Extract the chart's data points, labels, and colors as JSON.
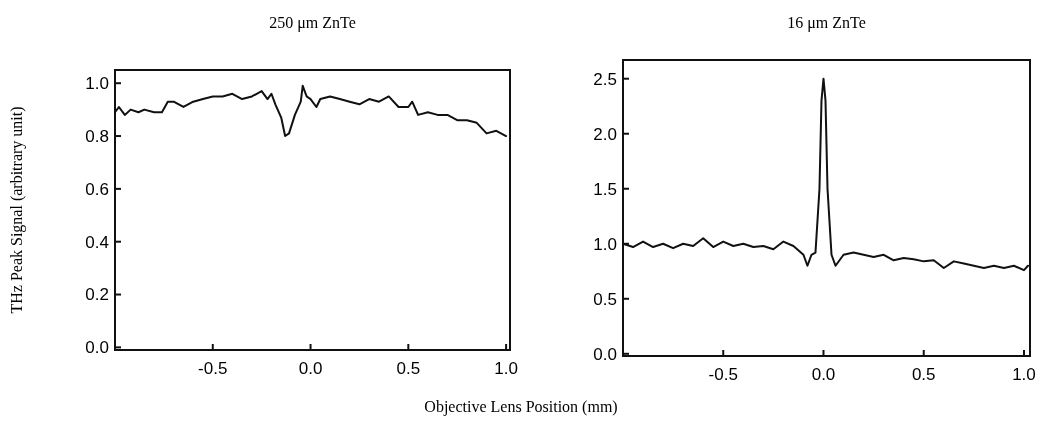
{
  "chart_data": [
    {
      "type": "line",
      "title": "250 μm ZnTe",
      "ylabel": "THz Peak Signal (arbitrary unit)",
      "xlim": [
        -1.0,
        1.02
      ],
      "ylim": [
        -0.01,
        1.05
      ],
      "xticks": [
        {
          "value": -0.5,
          "label": "-0.5"
        },
        {
          "value": 0,
          "label": "0.0"
        },
        {
          "value": 0.5,
          "label": "0.5"
        },
        {
          "value": 1,
          "label": "1.0"
        }
      ],
      "yticks": [
        {
          "value": 0,
          "label": "0.0"
        },
        {
          "value": 0.2,
          "label": "0.2"
        },
        {
          "value": 0.4,
          "label": "0.4"
        },
        {
          "value": 0.6,
          "label": "0.6"
        },
        {
          "value": 0.8,
          "label": "0.8"
        },
        {
          "value": 1,
          "label": "1.0"
        }
      ],
      "series": [
        {
          "color": "#111111",
          "x": [
            -1.0,
            -0.98,
            -0.95,
            -0.92,
            -0.88,
            -0.85,
            -0.8,
            -0.76,
            -0.73,
            -0.7,
            -0.65,
            -0.6,
            -0.55,
            -0.5,
            -0.45,
            -0.4,
            -0.35,
            -0.3,
            -0.25,
            -0.22,
            -0.2,
            -0.18,
            -0.15,
            -0.13,
            -0.11,
            -0.08,
            -0.05,
            -0.04,
            -0.02,
            0.0,
            0.03,
            0.05,
            0.1,
            0.15,
            0.2,
            0.25,
            0.3,
            0.35,
            0.4,
            0.45,
            0.5,
            0.52,
            0.55,
            0.6,
            0.65,
            0.7,
            0.75,
            0.8,
            0.85,
            0.9,
            0.95,
            1.0
          ],
          "values": [
            0.89,
            0.91,
            0.88,
            0.9,
            0.89,
            0.9,
            0.89,
            0.89,
            0.93,
            0.93,
            0.91,
            0.93,
            0.94,
            0.95,
            0.95,
            0.96,
            0.94,
            0.95,
            0.97,
            0.94,
            0.96,
            0.92,
            0.87,
            0.8,
            0.81,
            0.88,
            0.93,
            0.99,
            0.95,
            0.94,
            0.91,
            0.94,
            0.95,
            0.94,
            0.93,
            0.92,
            0.94,
            0.93,
            0.95,
            0.91,
            0.91,
            0.93,
            0.88,
            0.89,
            0.88,
            0.88,
            0.86,
            0.86,
            0.85,
            0.81,
            0.82,
            0.8
          ]
        }
      ]
    },
    {
      "type": "line",
      "title": "16 μm ZnTe",
      "xlabel": "Objective Lens Position (mm)",
      "xlim": [
        -1.0,
        1.03
      ],
      "ylim": [
        -0.02,
        2.67
      ],
      "xticks": [
        {
          "value": -0.5,
          "label": "-0.5"
        },
        {
          "value": 0,
          "label": "0.0"
        },
        {
          "value": 0.5,
          "label": "0.5"
        },
        {
          "value": 1,
          "label": "1.0"
        }
      ],
      "yticks": [
        {
          "value": 0,
          "label": "0.0"
        },
        {
          "value": 0.5,
          "label": "0.5"
        },
        {
          "value": 1,
          "label": "1.0"
        },
        {
          "value": 1.5,
          "label": "1.5"
        },
        {
          "value": 2,
          "label": "2.0"
        },
        {
          "value": 2.5,
          "label": "2.5"
        }
      ],
      "series": [
        {
          "color": "#111111",
          "x": [
            -1.0,
            -0.95,
            -0.9,
            -0.85,
            -0.8,
            -0.75,
            -0.7,
            -0.65,
            -0.6,
            -0.55,
            -0.5,
            -0.45,
            -0.4,
            -0.35,
            -0.3,
            -0.25,
            -0.2,
            -0.15,
            -0.1,
            -0.08,
            -0.06,
            -0.04,
            -0.02,
            -0.01,
            0.0,
            0.01,
            0.02,
            0.04,
            0.06,
            0.08,
            0.1,
            0.15,
            0.2,
            0.25,
            0.3,
            0.35,
            0.4,
            0.45,
            0.5,
            0.55,
            0.6,
            0.65,
            0.7,
            0.75,
            0.8,
            0.85,
            0.9,
            0.95,
            1.0,
            1.02
          ],
          "values": [
            1.0,
            0.97,
            1.02,
            0.97,
            1.0,
            0.96,
            1.0,
            0.98,
            1.05,
            0.97,
            1.02,
            0.98,
            1.0,
            0.97,
            0.98,
            0.95,
            1.02,
            0.98,
            0.9,
            0.8,
            0.9,
            0.92,
            1.5,
            2.3,
            2.5,
            2.3,
            1.5,
            0.9,
            0.8,
            0.85,
            0.9,
            0.92,
            0.9,
            0.88,
            0.9,
            0.85,
            0.87,
            0.86,
            0.84,
            0.85,
            0.78,
            0.84,
            0.82,
            0.8,
            0.78,
            0.8,
            0.78,
            0.8,
            0.76,
            0.8
          ]
        }
      ]
    }
  ]
}
